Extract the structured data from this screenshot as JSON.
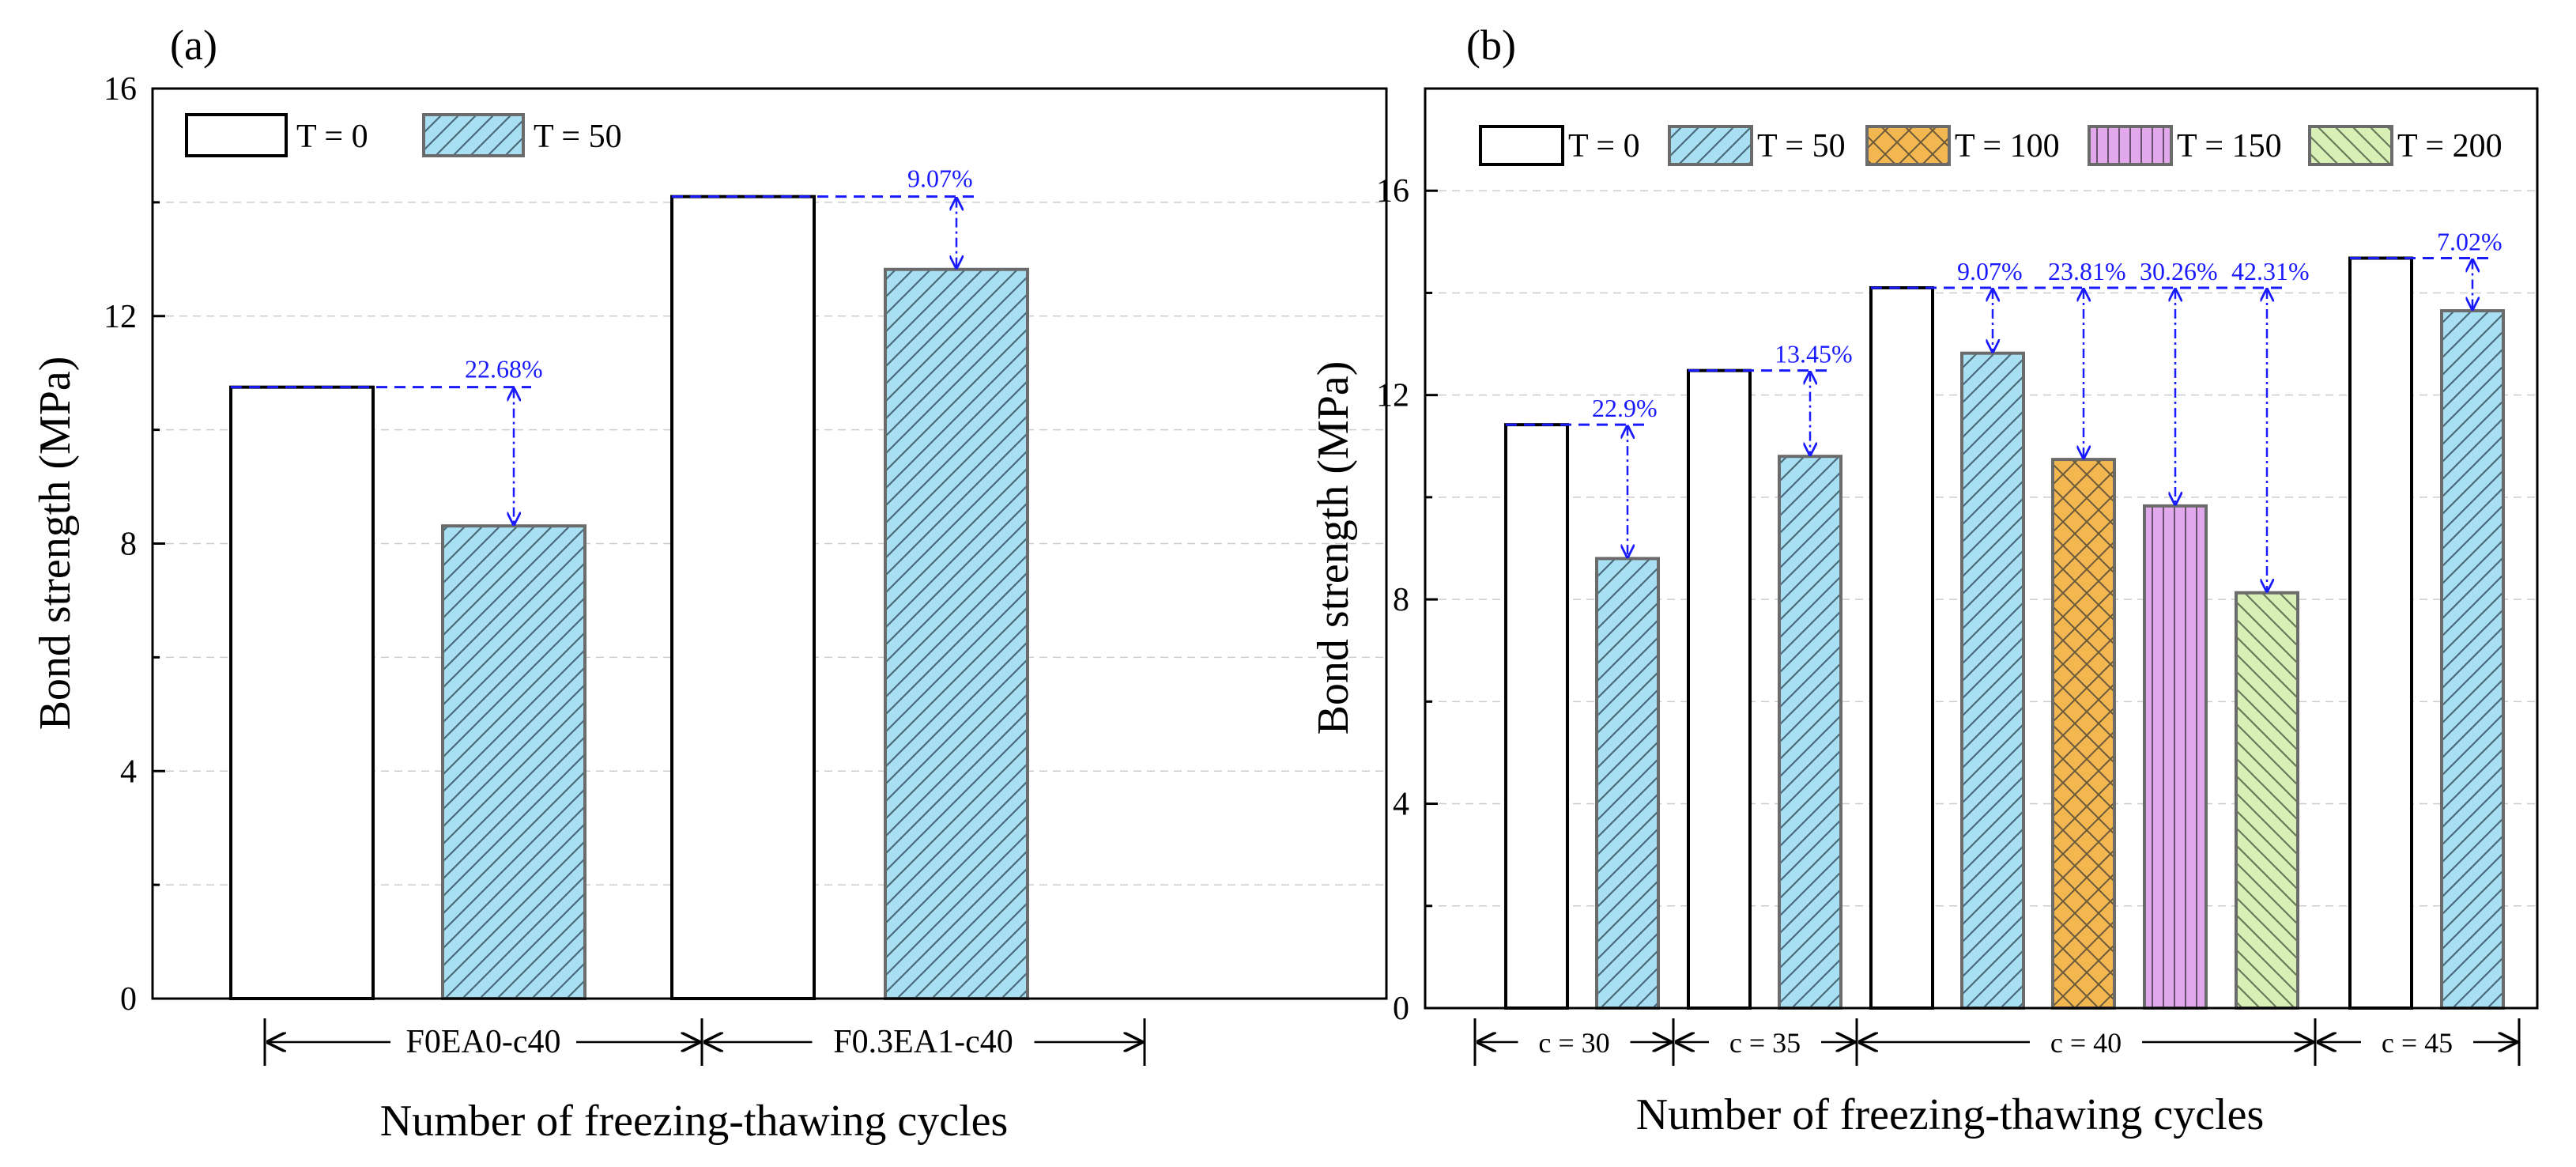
{
  "colors": {
    "t0": "#ffffff",
    "t50": "#a8dff2",
    "t100": "#f2b751",
    "t150": "#e1a8ec",
    "t200": "#d8f0b6",
    "annotation": "#1a1aff",
    "bar_edge_t0": "#000000",
    "bar_edge_other": "#6b6b6b",
    "grid": "#cccccc"
  },
  "chart_data": [
    {
      "type": "bar",
      "panel_label": "(a)",
      "ylabel": "Bond strength (MPa)",
      "xlabel": "Number of freezing-thawing cycles",
      "ylim": [
        0,
        16
      ],
      "yticks": [
        "0",
        "4",
        "8",
        "12",
        "16"
      ],
      "grid": "dashed horizontal minor lines every 2 MPa",
      "legend": {
        "position": "top-left",
        "entries": [
          {
            "label": "T = 0",
            "pattern": "t0"
          },
          {
            "label": "T = 50",
            "pattern": "t50"
          }
        ]
      },
      "groups": [
        {
          "label": "F0EA0-c40",
          "bars": [
            {
              "series": "T = 0",
              "value": 10.75
            },
            {
              "series": "T = 50",
              "value": 8.31
            }
          ],
          "annotations": [
            {
              "text": "22.68%",
              "from": 10.75,
              "to": 8.31
            }
          ]
        },
        {
          "label": "F0.3EA1-c40",
          "bars": [
            {
              "series": "T = 0",
              "value": 14.1
            },
            {
              "series": "T = 50",
              "value": 12.82
            }
          ],
          "annotations": [
            {
              "text": "9.07%",
              "from": 14.1,
              "to": 12.82
            }
          ]
        }
      ]
    },
    {
      "type": "bar",
      "panel_label": "(b)",
      "ylabel": "Bond strength (MPa)",
      "xlabel": "Number of freezing-thawing cycles",
      "ylim": [
        0,
        18
      ],
      "yticks": [
        "0",
        "4",
        "8",
        "12",
        "16"
      ],
      "grid": "dashed horizontal minor lines every 2 MPa",
      "legend": {
        "position": "top",
        "entries": [
          {
            "label": "T = 0",
            "pattern": "t0"
          },
          {
            "label": "T = 50",
            "pattern": "t50"
          },
          {
            "label": "T = 100",
            "pattern": "t100"
          },
          {
            "label": "T = 150",
            "pattern": "t150"
          },
          {
            "label": "T = 200",
            "pattern": "t200"
          }
        ]
      },
      "groups": [
        {
          "label": "c = 30",
          "bars": [
            {
              "series": "T = 0",
              "value": 11.42
            },
            {
              "series": "T = 50",
              "value": 8.8
            }
          ],
          "annotations": [
            {
              "text": "22.9%",
              "from": 11.42,
              "to": 8.8
            }
          ]
        },
        {
          "label": "c = 35",
          "bars": [
            {
              "series": "T = 0",
              "value": 12.48
            },
            {
              "series": "T = 50",
              "value": 10.8
            }
          ],
          "annotations": [
            {
              "text": "13.45%",
              "from": 12.48,
              "to": 10.8
            }
          ]
        },
        {
          "label": "c = 40",
          "bars": [
            {
              "series": "T = 0",
              "value": 14.1
            },
            {
              "series": "T = 50",
              "value": 12.82
            },
            {
              "series": "T = 100",
              "value": 10.74
            },
            {
              "series": "T = 150",
              "value": 9.83
            },
            {
              "series": "T = 200",
              "value": 8.13
            }
          ],
          "annotations": [
            {
              "text": "9.07%",
              "from": 14.1,
              "to": 12.82
            },
            {
              "text": "23.81%",
              "from": 14.1,
              "to": 10.74
            },
            {
              "text": "30.26%",
              "from": 14.1,
              "to": 9.83
            },
            {
              "text": "42.31%",
              "from": 14.1,
              "to": 8.13
            }
          ]
        },
        {
          "label": "c = 45",
          "bars": [
            {
              "series": "T = 0",
              "value": 14.68
            },
            {
              "series": "T = 50",
              "value": 13.65
            }
          ],
          "annotations": [
            {
              "text": "7.02%",
              "from": 14.68,
              "to": 13.65
            }
          ]
        }
      ]
    }
  ]
}
